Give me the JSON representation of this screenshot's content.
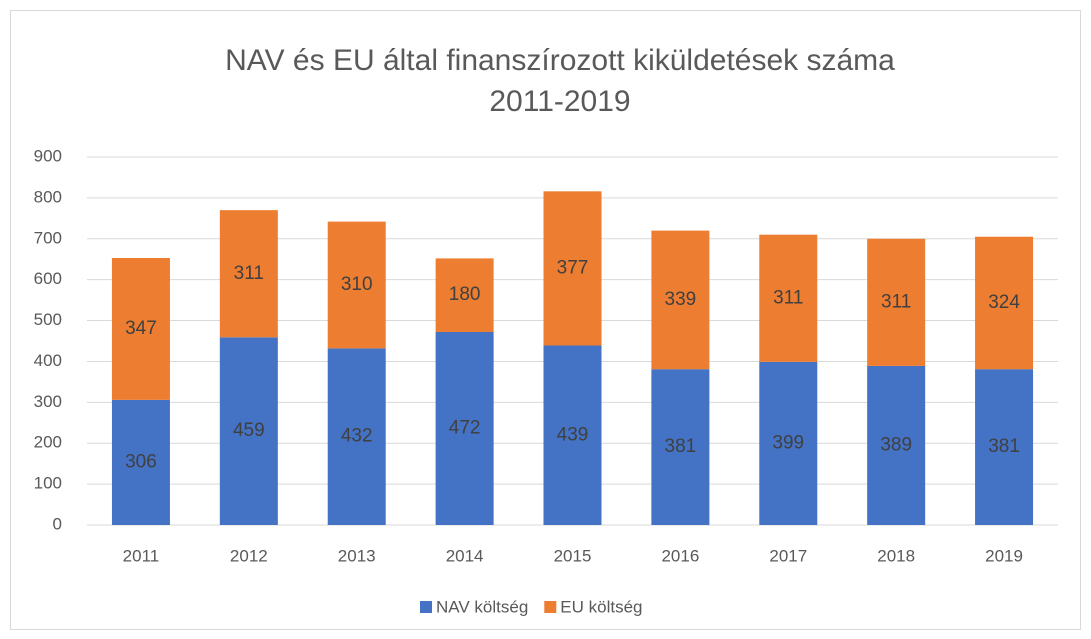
{
  "chart_data": {
    "type": "stacked_bar",
    "title": [
      "NAV és EU által finanszírozott kiküldetések száma",
      "2011-2019"
    ],
    "categories": [
      "2011",
      "2012",
      "2013",
      "2014",
      "2015",
      "2016",
      "2017",
      "2018",
      "2019"
    ],
    "series": [
      {
        "name": "NAV költség",
        "color": "#4472c4",
        "values": [
          306,
          459,
          432,
          472,
          439,
          381,
          399,
          389,
          381
        ]
      },
      {
        "name": "EU költség",
        "color": "#ed7d31",
        "values": [
          347,
          311,
          310,
          180,
          377,
          339,
          311,
          311,
          324
        ]
      }
    ],
    "ylim": [
      0,
      900
    ],
    "yticks": [
      0,
      100,
      200,
      300,
      400,
      500,
      600,
      700,
      800,
      900
    ],
    "grid": true,
    "legend": "bottom"
  }
}
